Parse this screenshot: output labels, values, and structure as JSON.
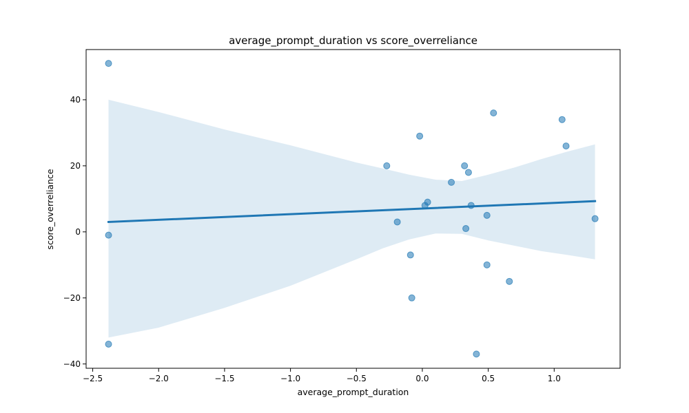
{
  "chart_data": {
    "type": "scatter",
    "title": "average_prompt_duration vs score_overreliance",
    "xlabel": "average_prompt_duration",
    "ylabel": "score_overreliance",
    "xlim": [
      -2.55,
      1.5
    ],
    "ylim": [
      -41.3,
      55.2
    ],
    "xticks": [
      -2.5,
      -2.0,
      -1.5,
      -1.0,
      -0.5,
      0.0,
      0.5,
      1.0
    ],
    "xtick_labels": [
      "−2.5",
      "−2.0",
      "−1.5",
      "−1.0",
      "−0.5",
      "0.0",
      "0.5",
      "1.0"
    ],
    "yticks": [
      -40,
      -20,
      0,
      20,
      40
    ],
    "ytick_labels": [
      "−40",
      "−20",
      "0",
      "20",
      "40"
    ],
    "grid": false,
    "point_color": "#1f77b4",
    "line_color": "#1f77b4",
    "band_color": "#1f77b4",
    "points": [
      {
        "x": -2.38,
        "y": 51
      },
      {
        "x": -2.38,
        "y": -1
      },
      {
        "x": -2.38,
        "y": -34
      },
      {
        "x": -0.27,
        "y": 20
      },
      {
        "x": -0.19,
        "y": 3
      },
      {
        "x": -0.09,
        "y": -7
      },
      {
        "x": -0.08,
        "y": -20
      },
      {
        "x": -0.02,
        "y": 29
      },
      {
        "x": 0.02,
        "y": 8
      },
      {
        "x": 0.04,
        "y": 9
      },
      {
        "x": 0.22,
        "y": 15
      },
      {
        "x": 0.32,
        "y": 20
      },
      {
        "x": 0.33,
        "y": 1
      },
      {
        "x": 0.35,
        "y": 18
      },
      {
        "x": 0.37,
        "y": 8
      },
      {
        "x": 0.41,
        "y": -37
      },
      {
        "x": 0.49,
        "y": 5
      },
      {
        "x": 0.49,
        "y": -10
      },
      {
        "x": 0.54,
        "y": 36
      },
      {
        "x": 0.66,
        "y": -15
      },
      {
        "x": 1.06,
        "y": 34
      },
      {
        "x": 1.09,
        "y": 26
      },
      {
        "x": 1.31,
        "y": 4
      }
    ],
    "regression": {
      "x": [
        -2.38,
        1.31
      ],
      "y": [
        3.0,
        9.3
      ]
    },
    "confidence_band": {
      "x": [
        -2.38,
        -2.0,
        -1.5,
        -1.0,
        -0.5,
        -0.3,
        -0.1,
        0.1,
        0.3,
        0.5,
        0.7,
        0.9,
        1.1,
        1.31
      ],
      "upper": [
        40.0,
        36.3,
        31.0,
        26.2,
        21.0,
        19.2,
        17.3,
        15.8,
        15.4,
        17.3,
        19.5,
        22.0,
        24.3,
        26.5
      ],
      "lower": [
        -32.0,
        -29.0,
        -23.0,
        -16.3,
        -8.3,
        -5.0,
        -2.3,
        -0.5,
        -0.6,
        -2.6,
        -4.2,
        -5.8,
        -7.0,
        -8.3
      ]
    }
  }
}
